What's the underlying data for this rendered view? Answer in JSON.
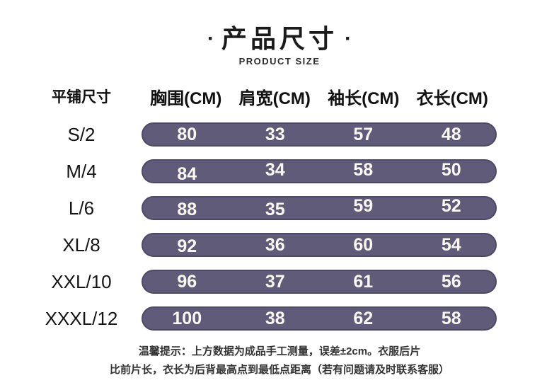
{
  "title": {
    "dot_left": "·",
    "text": "产品尺寸",
    "dot_right": "·",
    "subtitle": "PRODUCT SIZE"
  },
  "table": {
    "corner_label": "平铺尺寸",
    "columns": [
      "胸围(CM)",
      "肩宽(CM)",
      "袖长(CM)",
      "衣长(CM)"
    ],
    "rows": [
      {
        "size": "S/2",
        "values": [
          "80",
          "33",
          "57",
          "48"
        ]
      },
      {
        "size": "M/4",
        "values": [
          "84",
          "34",
          "58",
          "50"
        ]
      },
      {
        "size": "L/6",
        "values": [
          "88",
          "35",
          "59",
          "52"
        ]
      },
      {
        "size": "XL/8",
        "values": [
          "92",
          "36",
          "60",
          "54"
        ]
      },
      {
        "size": "XXL/10",
        "values": [
          "96",
          "37",
          "61",
          "56"
        ]
      },
      {
        "size": "XXXL/12",
        "values": [
          "100",
          "38",
          "62",
          "58"
        ]
      }
    ],
    "bar_color": "#5f5b78",
    "bar_border_color": "#4c4869",
    "bar_text_color": "#faf8f0"
  },
  "footer": {
    "line1": "温馨提示：上方数据为成品手工测量，误差±2cm。衣服后片",
    "line2": "比前片长，衣长为后背最高点到最低点距离（若有问题请及时联系客服）"
  },
  "chart_data": {
    "type": "table",
    "title": "产品尺寸 PRODUCT SIZE",
    "row_header": "平铺尺寸",
    "columns": [
      "胸围(CM)",
      "肩宽(CM)",
      "袖长(CM)",
      "衣长(CM)"
    ],
    "rows": [
      {
        "size": "S/2",
        "chest": 80,
        "shoulder": 33,
        "sleeve": 57,
        "length": 48
      },
      {
        "size": "M/4",
        "chest": 84,
        "shoulder": 34,
        "sleeve": 58,
        "length": 50
      },
      {
        "size": "L/6",
        "chest": 88,
        "shoulder": 35,
        "sleeve": 59,
        "length": 52
      },
      {
        "size": "XL/8",
        "chest": 92,
        "shoulder": 36,
        "sleeve": 60,
        "length": 54
      },
      {
        "size": "XXL/10",
        "chest": 96,
        "shoulder": 37,
        "sleeve": 61,
        "length": 56
      },
      {
        "size": "XXXL/12",
        "chest": 100,
        "shoulder": 38,
        "sleeve": 62,
        "length": 58
      }
    ]
  }
}
